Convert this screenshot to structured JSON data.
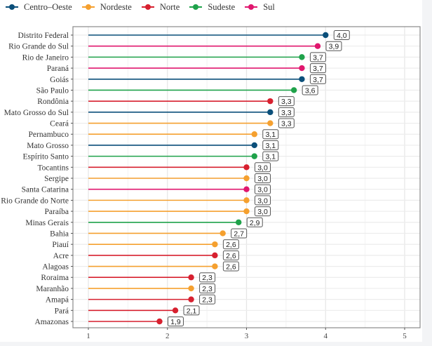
{
  "chart_data": {
    "type": "lollipop",
    "title": "",
    "xlabel": "",
    "ylabel": "",
    "xlim": [
      0.9,
      5.1
    ],
    "x_ticks": [
      1,
      2,
      3,
      4,
      5
    ],
    "x_tick_labels": [
      "1",
      "2",
      "3",
      "4",
      "5"
    ],
    "grid": true,
    "legend_position": "top-left",
    "legend": [
      {
        "name": "Centro–Oeste",
        "color": "#0b4f7a"
      },
      {
        "name": "Nordeste",
        "color": "#f5a02f"
      },
      {
        "name": "Norte",
        "color": "#d7202f"
      },
      {
        "name": "Sudeste",
        "color": "#1fa24a"
      },
      {
        "name": "Sul",
        "color": "#e0176e"
      }
    ],
    "baseline": 1,
    "points": [
      {
        "state": "Distrito Federal",
        "region": "Centro–Oeste",
        "value": 4.0,
        "label": "4,0"
      },
      {
        "state": "Rio Grande do Sul",
        "region": "Sul",
        "value": 3.9,
        "label": "3,9"
      },
      {
        "state": "Rio de Janeiro",
        "region": "Sudeste",
        "value": 3.7,
        "label": "3,7"
      },
      {
        "state": "Paraná",
        "region": "Sul",
        "value": 3.7,
        "label": "3,7"
      },
      {
        "state": "Goiás",
        "region": "Centro–Oeste",
        "value": 3.7,
        "label": "3,7"
      },
      {
        "state": "São Paulo",
        "region": "Sudeste",
        "value": 3.6,
        "label": "3,6"
      },
      {
        "state": "Rondônia",
        "region": "Norte",
        "value": 3.3,
        "label": "3,3"
      },
      {
        "state": "Mato Grosso do Sul",
        "region": "Centro–Oeste",
        "value": 3.3,
        "label": "3,3"
      },
      {
        "state": "Ceará",
        "region": "Nordeste",
        "value": 3.3,
        "label": "3,3"
      },
      {
        "state": "Pernambuco",
        "region": "Nordeste",
        "value": 3.1,
        "label": "3,1"
      },
      {
        "state": "Mato Grosso",
        "region": "Centro–Oeste",
        "value": 3.1,
        "label": "3,1"
      },
      {
        "state": "Espírito Santo",
        "region": "Sudeste",
        "value": 3.1,
        "label": "3,1"
      },
      {
        "state": "Tocantins",
        "region": "Norte",
        "value": 3.0,
        "label": "3,0"
      },
      {
        "state": "Sergipe",
        "region": "Nordeste",
        "value": 3.0,
        "label": "3,0"
      },
      {
        "state": "Santa Catarina",
        "region": "Sul",
        "value": 3.0,
        "label": "3,0"
      },
      {
        "state": "Rio Grande do Norte",
        "region": "Nordeste",
        "value": 3.0,
        "label": "3,0"
      },
      {
        "state": "Paraíba",
        "region": "Nordeste",
        "value": 3.0,
        "label": "3,0"
      },
      {
        "state": "Minas Gerais",
        "region": "Sudeste",
        "value": 2.9,
        "label": "2,9"
      },
      {
        "state": "Bahia",
        "region": "Nordeste",
        "value": 2.7,
        "label": "2,7"
      },
      {
        "state": "Piauí",
        "region": "Nordeste",
        "value": 2.6,
        "label": "2,6"
      },
      {
        "state": "Acre",
        "region": "Norte",
        "value": 2.6,
        "label": "2,6"
      },
      {
        "state": "Alagoas",
        "region": "Nordeste",
        "value": 2.6,
        "label": "2,6"
      },
      {
        "state": "Roraima",
        "region": "Norte",
        "value": 2.3,
        "label": "2,3"
      },
      {
        "state": "Maranhão",
        "region": "Nordeste",
        "value": 2.3,
        "label": "2,3"
      },
      {
        "state": "Amapá",
        "region": "Norte",
        "value": 2.3,
        "label": "2,3"
      },
      {
        "state": "Pará",
        "region": "Norte",
        "value": 2.1,
        "label": "2,1"
      },
      {
        "state": "Amazonas",
        "region": "Norte",
        "value": 1.9,
        "label": "1,9"
      }
    ]
  }
}
